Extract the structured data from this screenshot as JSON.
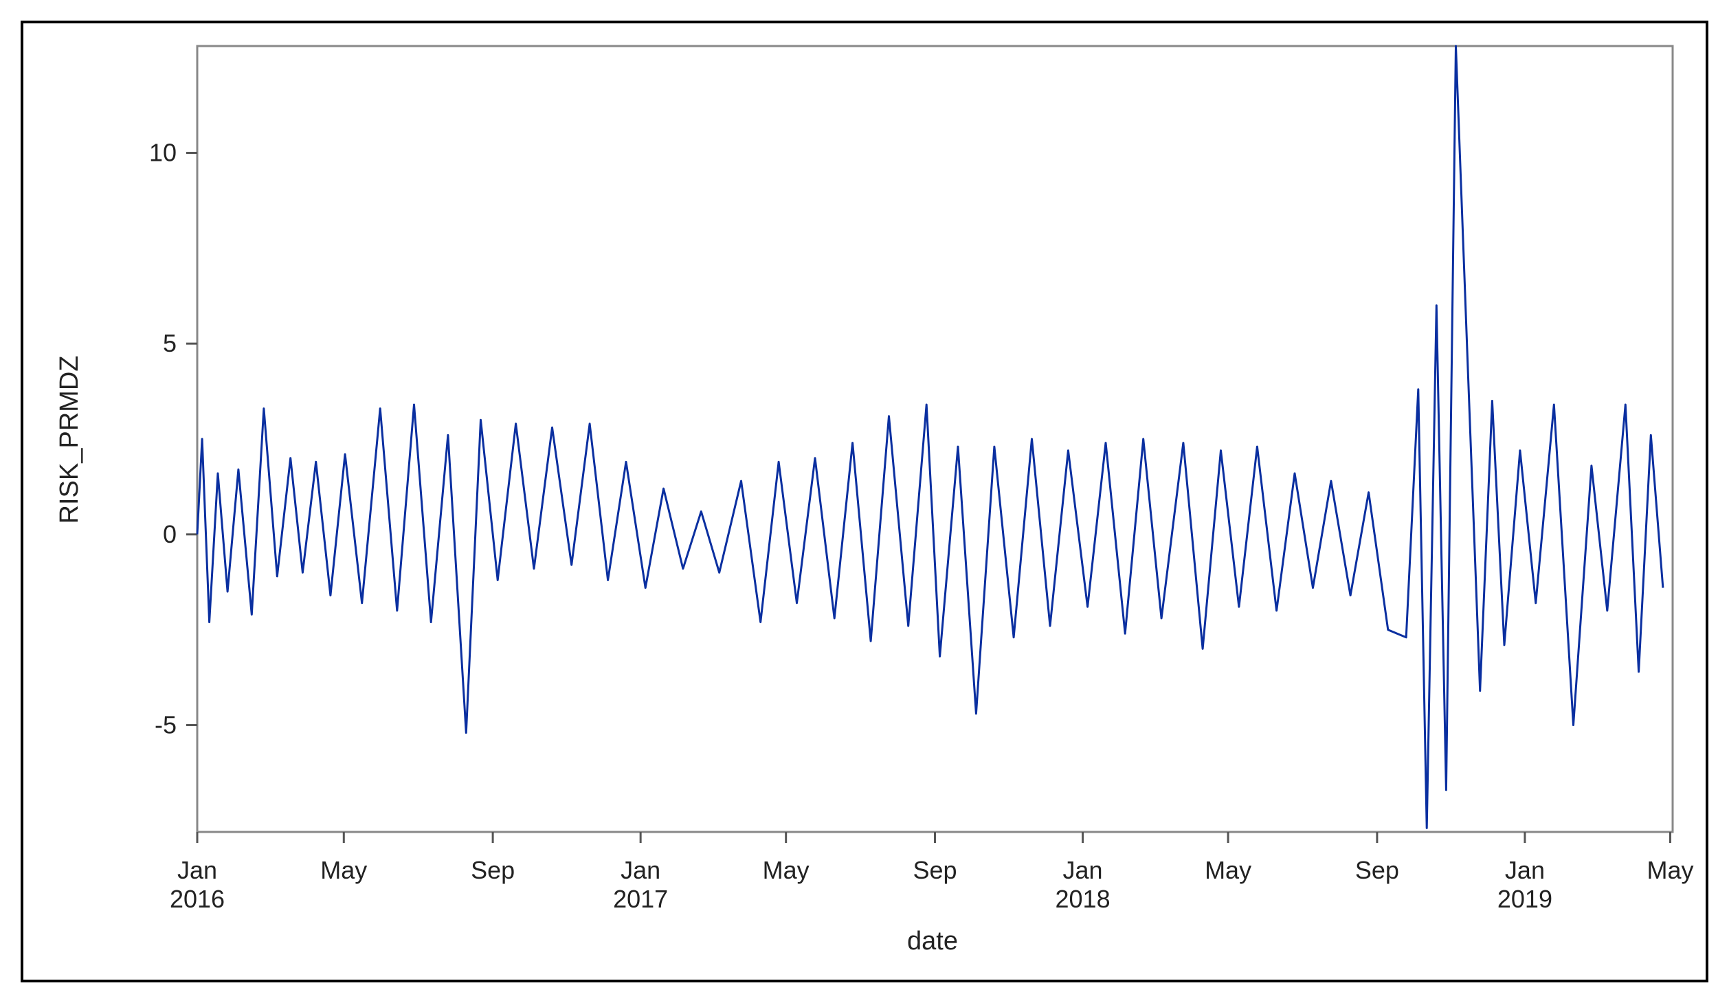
{
  "chart_data": {
    "type": "line",
    "xlabel": "date",
    "ylabel": "RISK_PRMDZ",
    "grid": false,
    "legend": "none",
    "line_color": "#0a2fa0",
    "xlim": [
      "2016-01-01",
      "2019-05-03"
    ],
    "ylim": [
      -7.8,
      12.8
    ],
    "y_ticks": [
      {
        "value": 10,
        "label": "10"
      },
      {
        "value": 5,
        "label": "5"
      },
      {
        "value": 0,
        "label": "0"
      },
      {
        "value": -5,
        "label": "-5"
      }
    ],
    "x_ticks": [
      {
        "date": "2016-01-01",
        "label": "Jan",
        "sublabel": "2016"
      },
      {
        "date": "2016-05-01",
        "label": "May",
        "sublabel": ""
      },
      {
        "date": "2016-09-01",
        "label": "Sep",
        "sublabel": ""
      },
      {
        "date": "2017-01-01",
        "label": "Jan",
        "sublabel": "2017"
      },
      {
        "date": "2017-05-01",
        "label": "May",
        "sublabel": ""
      },
      {
        "date": "2017-09-01",
        "label": "Sep",
        "sublabel": ""
      },
      {
        "date": "2018-01-01",
        "label": "Jan",
        "sublabel": "2018"
      },
      {
        "date": "2018-05-01",
        "label": "May",
        "sublabel": ""
      },
      {
        "date": "2018-09-01",
        "label": "Sep",
        "sublabel": ""
      },
      {
        "date": "2019-01-01",
        "label": "Jan",
        "sublabel": "2019"
      },
      {
        "date": "2019-05-01",
        "label": "May",
        "sublabel": ""
      }
    ],
    "series": [
      {
        "x": [
          "2016-01-01",
          "2016-01-05",
          "2016-01-11",
          "2016-01-18",
          "2016-01-26",
          "2016-02-04",
          "2016-02-15",
          "2016-02-25",
          "2016-03-07",
          "2016-03-18",
          "2016-03-28",
          "2016-04-08",
          "2016-04-20",
          "2016-05-02",
          "2016-05-16",
          "2016-05-31",
          "2016-06-14",
          "2016-06-28",
          "2016-07-12",
          "2016-07-26",
          "2016-08-10",
          "2016-08-22",
          "2016-09-05",
          "2016-09-20",
          "2016-10-05",
          "2016-10-20",
          "2016-11-05",
          "2016-11-20",
          "2016-12-05",
          "2016-12-20",
          "2017-01-05",
          "2017-01-20",
          "2017-02-05",
          "2017-02-20",
          "2017-03-07",
          "2017-03-25",
          "2017-04-10",
          "2017-04-25",
          "2017-05-10",
          "2017-05-25",
          "2017-06-10",
          "2017-06-25",
          "2017-07-10",
          "2017-07-25",
          "2017-08-10",
          "2017-08-25",
          "2017-09-05",
          "2017-09-20",
          "2017-10-05",
          "2017-10-20",
          "2017-11-05",
          "2017-11-20",
          "2017-12-05",
          "2017-12-20",
          "2018-01-05",
          "2018-01-20",
          "2018-02-05",
          "2018-02-20",
          "2018-03-07",
          "2018-03-25",
          "2018-04-10",
          "2018-04-25",
          "2018-05-10",
          "2018-05-25",
          "2018-06-10",
          "2018-06-25",
          "2018-07-10",
          "2018-07-25",
          "2018-08-10",
          "2018-08-25",
          "2018-09-10",
          "2018-09-25",
          "2018-10-05",
          "2018-10-12",
          "2018-10-20",
          "2018-10-28",
          "2018-11-05",
          "2018-11-15",
          "2018-11-25",
          "2018-12-05",
          "2018-12-15",
          "2018-12-28",
          "2019-01-10",
          "2019-01-25",
          "2019-02-10",
          "2019-02-25",
          "2019-03-10",
          "2019-03-25",
          "2019-04-05",
          "2019-04-15",
          "2019-04-25"
        ],
        "y": [
          0,
          2.5,
          -2.3,
          1.6,
          -1.5,
          1.7,
          -2.1,
          3.3,
          -1.1,
          2.0,
          -1.0,
          1.9,
          -1.6,
          2.1,
          -1.8,
          3.3,
          -2.0,
          3.4,
          -2.3,
          2.6,
          -5.2,
          3.0,
          -1.2,
          2.9,
          -0.9,
          2.8,
          -0.8,
          2.9,
          -1.2,
          1.9,
          -1.4,
          1.2,
          -0.9,
          0.6,
          -1.0,
          1.4,
          -2.3,
          1.9,
          -1.8,
          2.0,
          -2.2,
          2.4,
          -2.8,
          3.1,
          -2.4,
          3.4,
          -3.2,
          2.3,
          -4.7,
          2.3,
          -2.7,
          2.5,
          -2.4,
          2.2,
          -1.9,
          2.4,
          -2.6,
          2.5,
          -2.2,
          2.4,
          -3.0,
          2.2,
          -1.9,
          2.3,
          -2.0,
          1.6,
          -1.4,
          1.4,
          -1.6,
          1.1,
          -2.5,
          -2.7,
          3.8,
          -7.7,
          6.0,
          -6.7,
          12.8,
          4.3,
          -4.1,
          3.5,
          -2.9,
          2.2,
          -1.8,
          3.4,
          -5.0,
          1.8,
          -2.0,
          3.4,
          -3.6,
          2.6,
          -1.4
        ]
      }
    ]
  }
}
